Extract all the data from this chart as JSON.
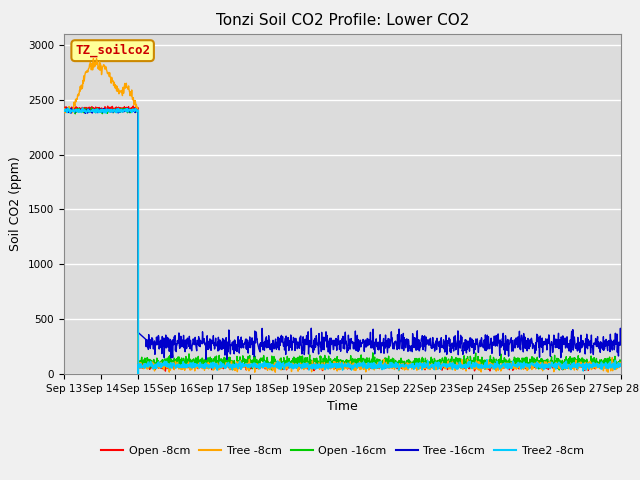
{
  "title": "Tonzi Soil CO2 Profile: Lower CO2",
  "ylabel": "Soil CO2 (ppm)",
  "xlabel": "Time",
  "ylim": [
    0,
    3100
  ],
  "background_color": "#dcdcdc",
  "fig_background": "#f0f0f0",
  "series": {
    "open_8cm": {
      "color": "#ff0000",
      "label": "Open -8cm",
      "lw": 1.0
    },
    "tree_8cm": {
      "color": "#ffa500",
      "label": "Tree -8cm",
      "lw": 1.0
    },
    "open_16cm": {
      "color": "#00cc00",
      "label": "Open -16cm",
      "lw": 1.0
    },
    "tree_16cm": {
      "color": "#0000cc",
      "label": "Tree -16cm",
      "lw": 1.0
    },
    "tree2_8cm": {
      "color": "#00ccff",
      "label": "Tree2 -8cm",
      "lw": 1.2
    }
  },
  "annotation": {
    "text": "TZ_soilco2",
    "facecolor": "#ffff99",
    "edgecolor": "#cc8800",
    "fontsize": 9,
    "fontcolor": "#cc0000"
  },
  "xtick_labels": [
    "Sep 13",
    "Sep 14",
    "Sep 15",
    "Sep 16",
    "Sep 17",
    "Sep 18",
    "Sep 19",
    "Sep 20",
    "Sep 21",
    "Sep 22",
    "Sep 23",
    "Sep 24",
    "Sep 25",
    "Sep 26",
    "Sep 27",
    "Sep 28"
  ],
  "ytick_labels": [
    0,
    500,
    1000,
    1500,
    2000,
    2500,
    3000
  ],
  "grid_color": "#ffffff",
  "title_fontsize": 11,
  "axis_label_fontsize": 9,
  "tick_fontsize": 7.5
}
